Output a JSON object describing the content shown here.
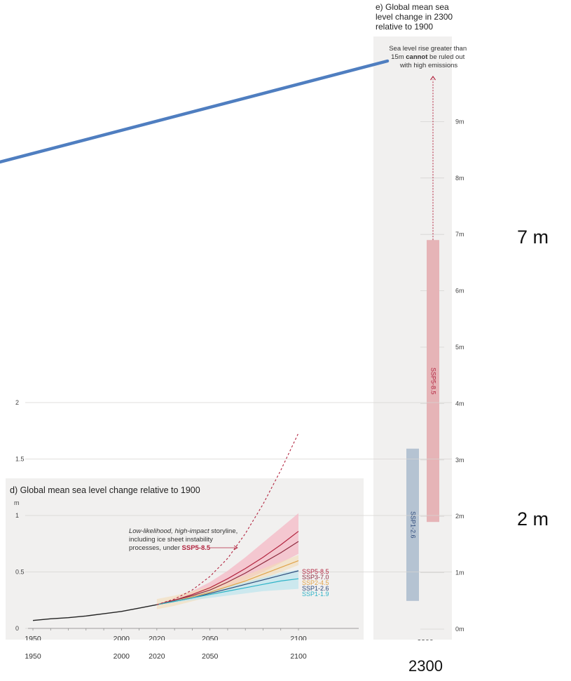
{
  "chart_data": [
    {
      "type": "line",
      "panel": "d",
      "title": "d) Global mean sea level change relative to 1900",
      "yunit": "m",
      "xlim": [
        1950,
        2100
      ],
      "ylim": [
        0,
        2
      ],
      "x_ticks": [
        "1950",
        "2000",
        "2020",
        "2050",
        "2100"
      ],
      "y_ticks": [
        "0",
        "0.5",
        "1",
        "1.5",
        "2"
      ],
      "observed": {
        "x": [
          1950,
          1960,
          1970,
          1980,
          1990,
          2000,
          2010,
          2020
        ],
        "y": [
          0.07,
          0.085,
          0.095,
          0.11,
          0.13,
          0.15,
          0.18,
          0.21
        ]
      },
      "projection_x": [
        2020,
        2030,
        2040,
        2050,
        2060,
        2070,
        2080,
        2090,
        2100
      ],
      "series": [
        {
          "name": "SSP5-8.5",
          "color": "#b2243f",
          "band_color": "#f4b9c5",
          "y": [
            0.21,
            0.25,
            0.3,
            0.36,
            0.44,
            0.53,
            0.63,
            0.74,
            0.86
          ],
          "low": [
            0.21,
            0.24,
            0.28,
            0.32,
            0.37,
            0.43,
            0.5,
            0.58,
            0.66
          ],
          "high": [
            0.21,
            0.27,
            0.33,
            0.41,
            0.51,
            0.63,
            0.76,
            0.89,
            1.02
          ]
        },
        {
          "name": "SSP3-7.0",
          "color": "#8e2a3e",
          "y": [
            0.21,
            0.25,
            0.29,
            0.34,
            0.41,
            0.49,
            0.58,
            0.67,
            0.77
          ]
        },
        {
          "name": "SSP2-4.5",
          "color": "#e0a34a",
          "band_color": "#f3dcb6",
          "y": [
            0.21,
            0.24,
            0.28,
            0.32,
            0.37,
            0.42,
            0.48,
            0.54,
            0.6
          ]
        },
        {
          "name": "SSP1-2.6",
          "color": "#2e4a7a",
          "y": [
            0.21,
            0.24,
            0.27,
            0.31,
            0.35,
            0.39,
            0.43,
            0.47,
            0.51
          ]
        },
        {
          "name": "SSP1-1.9",
          "color": "#2db3c8",
          "band_color": "#bfe6ee",
          "y": [
            0.21,
            0.24,
            0.27,
            0.3,
            0.33,
            0.36,
            0.39,
            0.42,
            0.44
          ],
          "low": [
            0.21,
            0.23,
            0.25,
            0.27,
            0.29,
            0.31,
            0.33,
            0.34,
            0.35
          ],
          "high": [
            0.21,
            0.25,
            0.29,
            0.33,
            0.37,
            0.41,
            0.45,
            0.49,
            0.52
          ]
        }
      ],
      "storyline": {
        "x": [
          2020,
          2030,
          2040,
          2050,
          2060,
          2070,
          2080,
          2090,
          2100
        ],
        "y": [
          0.21,
          0.26,
          0.34,
          0.46,
          0.62,
          0.84,
          1.1,
          1.4,
          1.73
        ],
        "line1_italic": "Low-likelihood, high-impact",
        "line1_rest": " storyline,",
        "line2": "including ice sheet instability",
        "line3_pre": "processes, under ",
        "line3_bold": "SSP5-8.5"
      }
    },
    {
      "type": "bar",
      "panel": "e",
      "title_lines": [
        "e) Global mean sea",
        "level change in 2300",
        "relative to 1900"
      ],
      "ylim": [
        0,
        10
      ],
      "y_ticks": [
        "0m",
        "1m",
        "2m",
        "3m",
        "4m",
        "5m",
        "6m",
        "7m",
        "8m",
        "9m"
      ],
      "x_tick": "2300",
      "bars": [
        {
          "name": "SSP1-2.6",
          "low": 0.5,
          "high": 3.2,
          "color": "#b5c3d2",
          "label_color": "#2e4a7a"
        },
        {
          "name": "SSP5-8.5",
          "low": 1.9,
          "high": 6.9,
          "color": "#e6b4b7",
          "label_color": "#b2243f"
        }
      ],
      "arrow_from": 6.9,
      "arrow_to": 9.8,
      "note_lines": [
        "Sea level rise greater than"
      ],
      "note_line2_pre": "15m ",
      "note_line2_bold": "cannot",
      "note_line2_post": " be ruled out",
      "note_line3": "with high emissions"
    }
  ],
  "overlay": {
    "label_7m": "7 m",
    "label_2m": "2 m",
    "bottom_ticks": [
      "1950",
      "2000",
      "2020",
      "2050",
      "2100"
    ],
    "bottom_2300": "2300",
    "arrow_color": "#4f7ec0"
  }
}
